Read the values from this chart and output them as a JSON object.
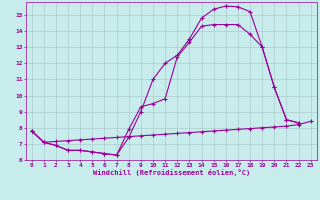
{
  "bg_color": "#c8ecec",
  "grid_color": "#aacccc",
  "line_color": "#990099",
  "xlabel": "Windchill (Refroidissement éolien,°C)",
  "xlim": [
    -0.5,
    23.5
  ],
  "ylim": [
    6.0,
    15.8
  ],
  "yticks": [
    6,
    7,
    8,
    9,
    10,
    11,
    12,
    13,
    14,
    15
  ],
  "xticks": [
    0,
    1,
    2,
    3,
    4,
    5,
    6,
    7,
    8,
    9,
    10,
    11,
    12,
    13,
    14,
    15,
    16,
    17,
    18,
    19,
    20,
    21,
    22,
    23
  ],
  "line1_x": [
    0,
    1,
    2,
    3,
    4,
    5,
    6,
    7,
    8,
    9,
    10,
    11,
    12,
    13,
    14,
    15,
    16,
    17,
    18,
    19,
    20,
    21,
    22
  ],
  "line1_y": [
    7.8,
    7.1,
    6.9,
    6.6,
    6.6,
    6.5,
    6.4,
    6.3,
    7.9,
    9.3,
    9.5,
    9.8,
    12.4,
    13.3,
    14.3,
    14.4,
    14.4,
    14.4,
    13.8,
    13.0,
    10.5,
    8.5,
    8.3
  ],
  "line2_x": [
    0,
    1,
    2,
    3,
    4,
    5,
    6,
    7,
    8,
    9,
    10,
    11,
    12,
    13,
    14,
    15,
    16,
    17,
    18,
    19,
    20,
    21,
    22
  ],
  "line2_y": [
    7.8,
    7.1,
    6.9,
    6.6,
    6.6,
    6.5,
    6.4,
    6.3,
    7.4,
    9.0,
    11.0,
    12.0,
    12.5,
    13.5,
    14.8,
    15.35,
    15.55,
    15.5,
    15.2,
    13.0,
    10.5,
    8.5,
    8.3
  ],
  "line3_x": [
    0,
    1,
    2,
    3,
    4,
    5,
    6,
    7,
    8,
    9,
    10,
    11,
    12,
    13,
    14,
    15,
    16,
    17,
    18,
    19,
    20,
    21,
    22,
    23
  ],
  "line3_y": [
    7.8,
    7.1,
    7.15,
    7.2,
    7.25,
    7.3,
    7.35,
    7.4,
    7.45,
    7.5,
    7.55,
    7.6,
    7.65,
    7.7,
    7.75,
    7.8,
    7.85,
    7.9,
    7.95,
    8.0,
    8.05,
    8.1,
    8.2,
    8.4
  ]
}
